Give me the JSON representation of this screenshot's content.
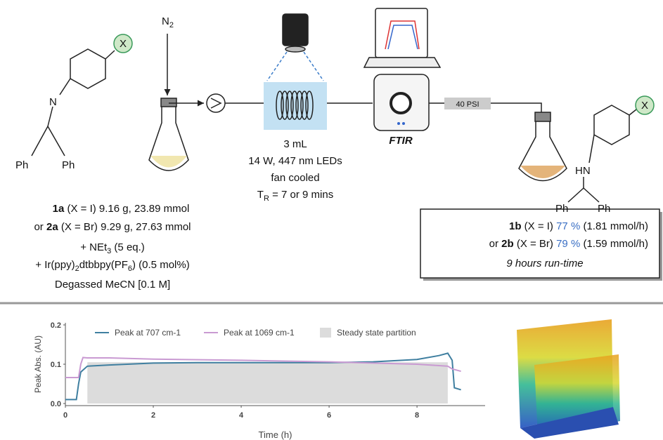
{
  "scheme": {
    "gas": [
      "N",
      "2"
    ],
    "reactant": {
      "X": "X",
      "N": "N",
      "Ph1": "Ph",
      "Ph2": "Ph"
    },
    "product": {
      "X": "X",
      "NH": "HN",
      "Ph1": "Ph",
      "Ph2": "Ph"
    },
    "reactor": [
      [
        "3 mL"
      ],
      [
        "14 W, 447 nm LEDs"
      ],
      [
        "fan cooled"
      ],
      [
        "T",
        "R",
        " = 7 or 9 mins"
      ]
    ],
    "detector": "FTIR",
    "pressure": "40 PSI",
    "left_compound": [
      [
        "1a",
        " (X = I) 9.16 g, 23.89 mmol"
      ],
      [
        "or ",
        "2a",
        " (X = Br) 9.29 g, 27.63 mmol"
      ],
      [
        "+ NEt",
        "3",
        " (5 eq.)"
      ],
      [
        "+ Ir(ppy)",
        "2",
        "dtbbpy(PF",
        "6",
        ") (0.5 mol%)"
      ],
      [
        "Degassed MeCN [0.1 M]"
      ]
    ],
    "result": [
      [
        "1b",
        " (X = I) ",
        "77 %",
        " (1.81 mmol/h)"
      ],
      [
        "or ",
        "2b",
        " (X = Br) ",
        "79 %",
        " (1.59 mmol/h)"
      ],
      [
        "9 hours run-time"
      ]
    ]
  },
  "chart_data": {
    "type": "line",
    "x_label": "Time (h)",
    "y_label": "Peak Abs. (AU)",
    "xlim": [
      0,
      9.55
    ],
    "ylim": [
      0,
      0.2
    ],
    "xticks": [
      0,
      2,
      4,
      6,
      8
    ],
    "yticks": [
      {
        "value": 0,
        "label": "0.0"
      },
      0.1,
      0.2
    ],
    "series": [
      {
        "name": "Peak at 707 cm-1",
        "color": "#3f7fa0",
        "x": [
          0,
          0.25,
          0.3,
          0.35,
          0.4,
          0.5,
          1,
          2,
          3,
          4,
          5,
          6,
          7,
          8,
          8.5,
          8.7,
          8.8,
          8.85,
          9.0
        ],
        "values": [
          0.01,
          0.01,
          0.05,
          0.08,
          0.085,
          0.095,
          0.098,
          0.103,
          0.104,
          0.104,
          0.104,
          0.104,
          0.106,
          0.112,
          0.122,
          0.128,
          0.11,
          0.04,
          0.035
        ]
      },
      {
        "name": "Peak at 1069 cm-1",
        "color": "#c99ad2",
        "x": [
          0,
          0.3,
          0.35,
          0.4,
          0.5,
          1,
          2,
          4,
          6,
          8,
          8.7,
          8.8,
          9.0
        ],
        "values": [
          0.066,
          0.066,
          0.1,
          0.117,
          0.116,
          0.116,
          0.113,
          0.11,
          0.106,
          0.1,
          0.095,
          0.088,
          0.082
        ]
      }
    ],
    "steady_state": {
      "name": "Steady state partition",
      "color": "#dcdcdc",
      "x": [
        0.5,
        8.7
      ],
      "top": 0.105
    }
  }
}
